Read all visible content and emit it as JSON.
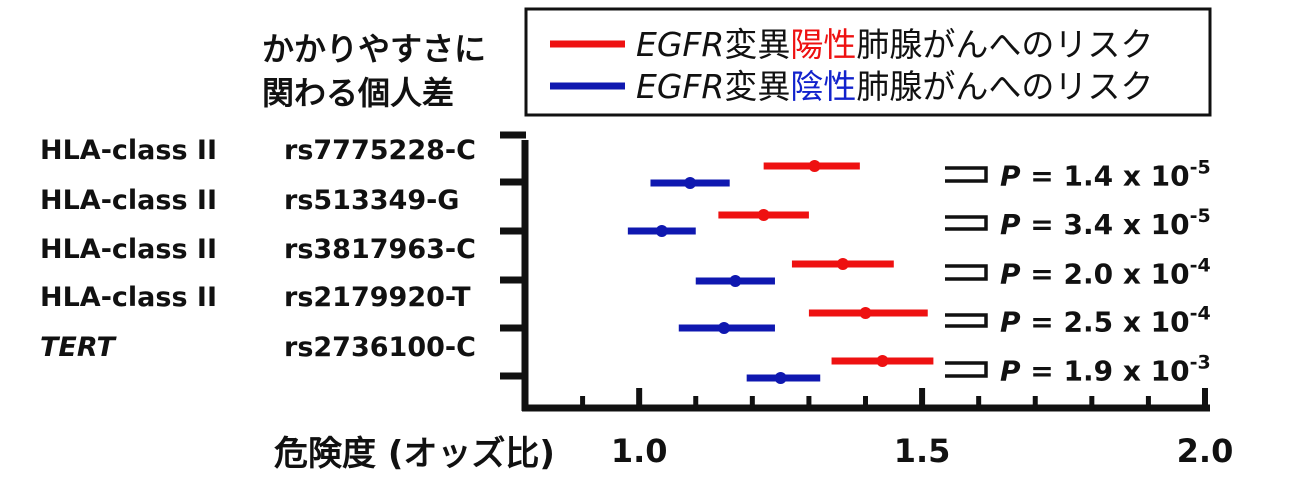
{
  "chart_data": {
    "type": "forest",
    "column_header": [
      "かかりやすさに",
      "関わる個人差"
    ],
    "xlabel": "危険度 (オッズ比)",
    "xlim": [
      0.8,
      2.0
    ],
    "xticks_major": [
      {
        "value": 1.0,
        "label": "1.0"
      },
      {
        "value": 1.5,
        "label": "1.5"
      },
      {
        "value": 2.0,
        "label": "2.0"
      }
    ],
    "xticks_minor": [
      0.9,
      1.1,
      1.2,
      1.3,
      1.4,
      1.6,
      1.7,
      1.8,
      1.9
    ],
    "colors": {
      "positive": "#ee1111",
      "negative": "#0f18b0",
      "text_red": "#ee1111",
      "text_blue": "#1122cc"
    },
    "legend": {
      "position": "top-right",
      "entries": [
        {
          "series": "positive",
          "prefix": "EGFR",
          "word1": "変異",
          "highlight": "陽性",
          "suffix": "肺腺がんへのリスク"
        },
        {
          "series": "negative",
          "prefix": "EGFR",
          "word1": "変異",
          "highlight": "陰性",
          "suffix": "肺腺がんへのリスク"
        }
      ]
    },
    "rows": [
      {
        "gene": "HLA-class II",
        "gene_italic": false,
        "snp": "rs7775228-C",
        "positive": {
          "or": 1.31,
          "lo": 1.22,
          "hi": 1.39
        },
        "negative": {
          "or": 1.09,
          "lo": 1.02,
          "hi": 1.16
        },
        "p_prefix": "P",
        "p_mid": " = 1.4 x 10",
        "p_exp": "-5"
      },
      {
        "gene": "HLA-class II",
        "gene_italic": false,
        "snp": "rs513349-G",
        "positive": {
          "or": 1.22,
          "lo": 1.14,
          "hi": 1.3
        },
        "negative": {
          "or": 1.04,
          "lo": 0.98,
          "hi": 1.1
        },
        "p_prefix": "P",
        "p_mid": " = 3.4 x 10",
        "p_exp": "-5"
      },
      {
        "gene": "HLA-class II",
        "gene_italic": false,
        "snp": "rs3817963-C",
        "positive": {
          "or": 1.36,
          "lo": 1.27,
          "hi": 1.45
        },
        "negative": {
          "or": 1.17,
          "lo": 1.1,
          "hi": 1.24
        },
        "p_prefix": "P",
        "p_mid": " = 2.0 x 10",
        "p_exp": "-4"
      },
      {
        "gene": "HLA-class II",
        "gene_italic": false,
        "snp": "rs2179920-T",
        "positive": {
          "or": 1.4,
          "lo": 1.3,
          "hi": 1.51
        },
        "negative": {
          "or": 1.15,
          "lo": 1.07,
          "hi": 1.24
        },
        "p_prefix": "P",
        "p_mid": " = 2.5 x 10",
        "p_exp": "-4"
      },
      {
        "gene": "TERT",
        "gene_italic": true,
        "snp": "rs2736100-C",
        "positive": {
          "or": 1.43,
          "lo": 1.34,
          "hi": 1.52
        },
        "negative": {
          "or": 1.25,
          "lo": 1.19,
          "hi": 1.32
        },
        "p_prefix": "P",
        "p_mid": " = 1.9 x 10",
        "p_exp": "-3"
      }
    ]
  }
}
